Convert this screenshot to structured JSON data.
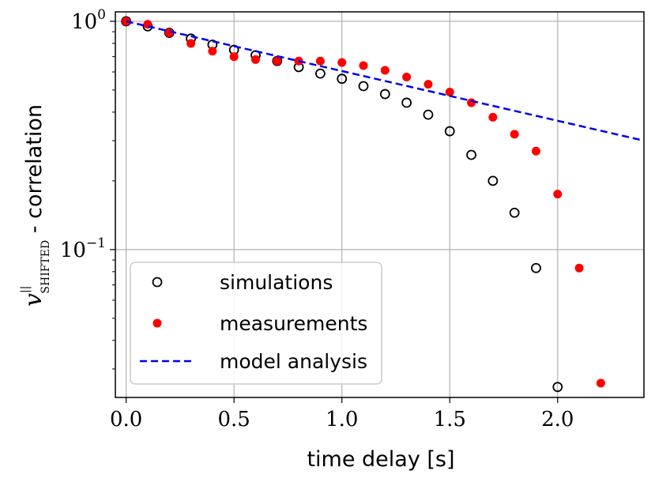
{
  "chart_data": {
    "type": "scatter",
    "xlabel": "time delay [s]",
    "ylabel": {
      "symbol": "v",
      "superscript": "||",
      "subscript": "SHIFTED",
      "suffix": " - correlation"
    },
    "xlim": [
      -0.05,
      2.4
    ],
    "ylim": [
      0.0225,
      1.1
    ],
    "yscale": "log",
    "grid": true,
    "legend_position": "lower-left",
    "x_ticks": [
      {
        "value": 0.0,
        "label": "0.0"
      },
      {
        "value": 0.5,
        "label": "0.5"
      },
      {
        "value": 1.0,
        "label": "1.0"
      },
      {
        "value": 1.5,
        "label": "1.5"
      },
      {
        "value": 2.0,
        "label": "2.0"
      }
    ],
    "y_ticks": [
      {
        "value": 1.0,
        "base": "10",
        "exponent": "0"
      },
      {
        "value": 0.1,
        "base": "10",
        "exponent": "−1"
      }
    ],
    "series": [
      {
        "name": "simulations",
        "marker": "open-circle",
        "color": "#000000",
        "x": [
          0.0,
          0.1,
          0.2,
          0.3,
          0.4,
          0.5,
          0.6,
          0.7,
          0.8,
          0.9,
          1.0,
          1.1,
          1.2,
          1.3,
          1.4,
          1.5,
          1.6,
          1.7,
          1.8,
          1.9,
          2.0
        ],
        "y": [
          1.0,
          0.95,
          0.89,
          0.84,
          0.79,
          0.75,
          0.71,
          0.67,
          0.63,
          0.59,
          0.56,
          0.52,
          0.48,
          0.44,
          0.39,
          0.33,
          0.26,
          0.2,
          0.145,
          0.083,
          0.025
        ]
      },
      {
        "name": "measurements",
        "marker": "filled-circle",
        "color": "#ff0000",
        "x": [
          0.0,
          0.1,
          0.2,
          0.3,
          0.4,
          0.5,
          0.6,
          0.7,
          0.8,
          0.9,
          1.0,
          1.1,
          1.2,
          1.3,
          1.4,
          1.5,
          1.6,
          1.7,
          1.8,
          1.9,
          2.0,
          2.1,
          2.2
        ],
        "y": [
          1.0,
          0.97,
          0.89,
          0.8,
          0.74,
          0.7,
          0.68,
          0.67,
          0.67,
          0.67,
          0.66,
          0.64,
          0.61,
          0.57,
          0.53,
          0.49,
          0.44,
          0.38,
          0.32,
          0.27,
          0.175,
          0.083,
          0.026
        ]
      },
      {
        "name": "model analysis",
        "marker": "dashed-line",
        "color": "#0000ee",
        "x": [
          0.0,
          2.4
        ],
        "y": [
          1.0,
          0.3
        ]
      }
    ]
  }
}
